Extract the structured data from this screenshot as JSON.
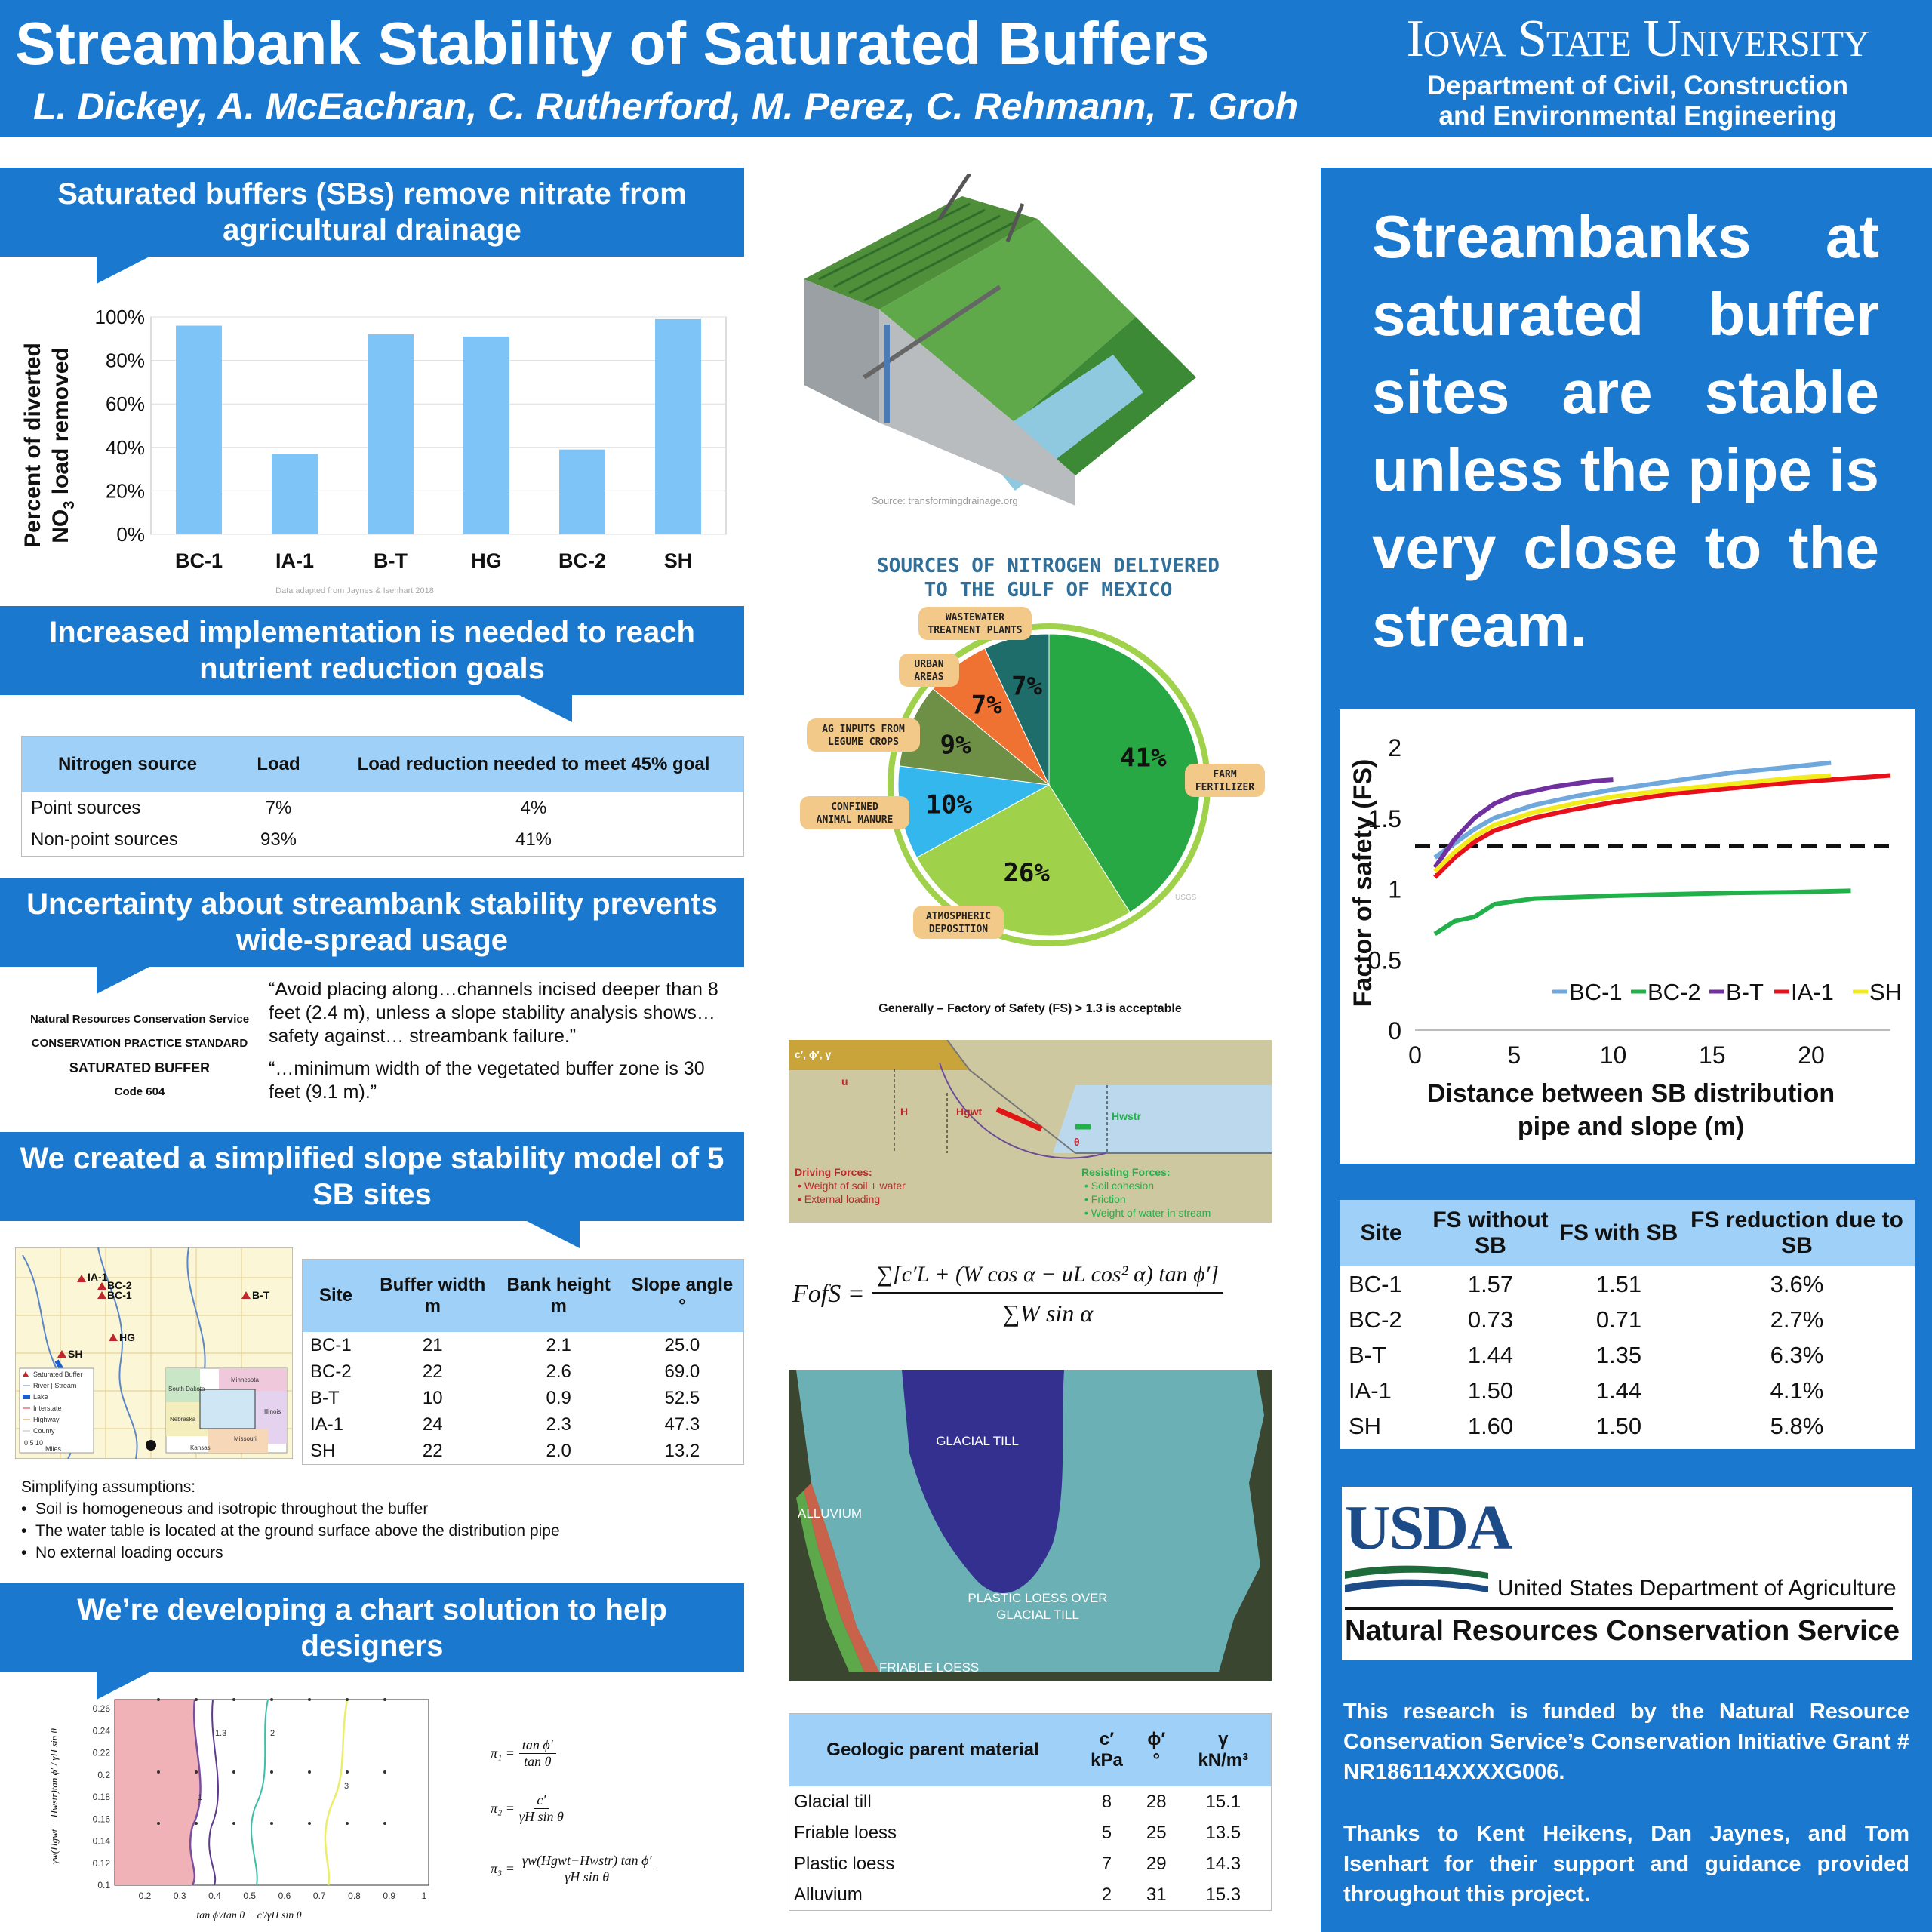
{
  "header": {
    "title": "Streambank Stability of Saturated Buffers",
    "authors": "L. Dickey, A. McEachran, C. Rutherford, M. Perez, C. Rehmann, T. Groh",
    "university": "Iowa State University",
    "dept_line1": "Department of Civil, Construction",
    "dept_line2": "and Environmental Engineering"
  },
  "sections": {
    "s1_title": "Saturated buffers (SBs) remove nitrate from agricultural drainage",
    "s2_title": "Increased implementation is needed to reach nutrient reduction goals",
    "s3_title": "Uncertainty about streambank stability prevents wide-spread usage",
    "s4_title": "We created a simplified slope stability model of 5 SB sites",
    "s5_title": "We’re developing a chart solution to help designers"
  },
  "nitrate_chart": {
    "ylabel_line1": "Percent of diverted",
    "ylabel_line2": "NO",
    "ylabel_sub": "3",
    "ylabel_line2b": " load removed",
    "yticks": [
      "100%",
      "80%",
      "60%",
      "40%",
      "20%",
      "0%"
    ],
    "caption": "Data adapted from Jaynes & Isenhart 2018",
    "color": "#7fc4f6"
  },
  "nitrogen_table": {
    "headers": [
      "Nitrogen source",
      "Load",
      "Load reduction needed to meet 45% goal"
    ],
    "rows": [
      [
        "Point sources",
        "7%",
        "4%"
      ],
      [
        "Non-point sources",
        "93%",
        "41%"
      ]
    ]
  },
  "nrcs": {
    "line1": "Natural Resources Conservation Service",
    "line2": "CONSERVATION PRACTICE STANDARD",
    "line3": "SATURATED BUFFER",
    "line4": "Code 604",
    "quote1": "“Avoid placing along…channels incised deeper than 8 feet (2.4 m), unless a slope stability analysis shows…safety against… streambank failure.”",
    "quote2": "“…minimum width of the vegetated buffer zone is 30 feet (9.1 m).”"
  },
  "site_map": {
    "labels": [
      "IA-1",
      "BC-2",
      "BC-1",
      "B-T",
      "HG",
      "SH"
    ],
    "legend": [
      "Saturated Buffer",
      "River | Stream",
      "Lake",
      "Interstate",
      "Highway",
      "County"
    ],
    "states": [
      "Minnesota",
      "South Dakota",
      "Nebraska",
      "Illinois",
      "Missouri",
      "Kansas"
    ],
    "scale": "0  5  10",
    "scale_unit": "Miles"
  },
  "site_table": {
    "headers": [
      "Site",
      "Buffer width",
      "Bank height",
      "Slope angle"
    ],
    "units": [
      "",
      "m",
      "m",
      "°"
    ],
    "rows": [
      [
        "BC-1",
        "21",
        "2.1",
        "25.0"
      ],
      [
        "BC-2",
        "22",
        "2.6",
        "69.0"
      ],
      [
        "B-T",
        "10",
        "0.9",
        "52.5"
      ],
      [
        "IA-1",
        "24",
        "2.3",
        "47.3"
      ],
      [
        "SH",
        "22",
        "2.0",
        "13.2"
      ]
    ]
  },
  "assumptions": {
    "title": "Simplifying assumptions:",
    "items": [
      "Soil is homogeneous and isotropic throughout the buffer",
      "The water table is located at the ground surface above the distribution pipe",
      "No external loading occurs"
    ]
  },
  "design_chart": {
    "yticks": [
      "0.26",
      "0.24",
      "0.22",
      "0.2",
      "0.18",
      "0.16",
      "0.14",
      "0.12",
      "0.1"
    ],
    "xticks": [
      "0.2",
      "0.3",
      "0.4",
      "0.5",
      "0.6",
      "0.7",
      "0.8",
      "0.9",
      "1"
    ],
    "contour_labels": [
      "1.3",
      "1",
      "2",
      "3"
    ],
    "pi1_label": "π₁ =",
    "pi1_num": "tan ϕ′",
    "pi1_den": "tan θ",
    "pi2_label": "π₂ =",
    "pi2_num": "c′",
    "pi2_den": "γH sin θ",
    "pi3_label": "π₃ =",
    "pi3_num": "γw(Hgwt−Hwstr) tan ϕ′",
    "pi3_den": "γH sin θ",
    "ylabel": "γw(Hgwt − Hwstr)tan ϕ′ / γH sin θ",
    "xlabel": "tan ϕ′/tan θ + c′/γH sin θ"
  },
  "buffer_image": {
    "source": "Source: transformingdrainage.org"
  },
  "pie_chart": {
    "title1": "SOURCES OF NITROGEN DELIVERED",
    "title2": "TO THE GULF OF MEXICO",
    "watermark": "USGS",
    "chart_data": {
      "type": "pie",
      "slices": [
        {
          "label": "FARM FERTILIZER",
          "value": 41,
          "color": "#27a844"
        },
        {
          "label": "ATMOSPHERIC DEPOSITION",
          "value": 26,
          "color": "#9fd14a"
        },
        {
          "label": "CONFINED ANIMAL MANURE",
          "value": 10,
          "color": "#33b7ec"
        },
        {
          "label": "AG INPUTS FROM LEGUME CROPS",
          "value": 9,
          "color": "#6e8f46"
        },
        {
          "label": "URBAN AREAS",
          "value": 7,
          "color": "#f07232"
        },
        {
          "label": "WASTEWATER TREATMENT PLANTS",
          "value": 7,
          "color": "#1e6d6a"
        }
      ]
    },
    "pct_labels": [
      "41%",
      "26%",
      "10%",
      "9%",
      "7%",
      "7%"
    ]
  },
  "slope_diagram": {
    "title": "Generally – Factory of Safety (FS) > 1.3 is acceptable",
    "soil_params": "c′, ϕ′, γ",
    "u": "u",
    "H": "H",
    "Hgwt": "Hgwt",
    "Hwstr": "Hwstr",
    "theta": "θ",
    "driving_title": "Driving Forces:",
    "driving_items": [
      "Weight of soil + water",
      "External loading"
    ],
    "resisting_title": "Resisting Forces:",
    "resisting_items": [
      "Soil cohesion",
      "Friction",
      "Weight of water in stream"
    ]
  },
  "equation": {
    "lhs": "FofS =",
    "numerator": "∑[c′L + (W cos α − uL cos² α) tan ϕ′]",
    "denominator": "∑W sin α"
  },
  "geology_map": {
    "labels": [
      "GLACIAL TILL",
      "ALLUVIUM",
      "PLASTIC LOESS OVER",
      "GLACIAL TILL",
      "FRIABLE LOESS"
    ]
  },
  "geology_table": {
    "headers": [
      "Geologic parent material",
      "c′",
      "ϕ′",
      "γ"
    ],
    "units": [
      "",
      "kPa",
      "°",
      "kN/m³"
    ],
    "rows": [
      [
        "Glacial till",
        "8",
        "28",
        "15.1"
      ],
      [
        "Friable loess",
        "5",
        "25",
        "13.5"
      ],
      [
        "Plastic loess",
        "7",
        "29",
        "14.3"
      ],
      [
        "Alluvium",
        "2",
        "31",
        "15.3"
      ]
    ]
  },
  "right": {
    "big_message": "Streambanks at saturated buffer sites are stable unless the pipe is very close to the stream."
  },
  "fs_chart": {
    "ylabel": "Factor of safety (FS)",
    "xlabel_line1": "Distance between SB distribution",
    "xlabel_line2": "pipe and slope (m)",
    "chart_data": {
      "type": "line",
      "xlim": [
        0,
        24
      ],
      "ylim": [
        0,
        2
      ],
      "xticks": [
        0,
        5,
        10,
        15,
        20
      ],
      "yticks": [
        0,
        0.5,
        1,
        1.5,
        2
      ],
      "ytick_labels": [
        "0",
        "0.5",
        "1",
        "1.5",
        "2"
      ],
      "threshold": 1.3,
      "legend_placement": "bottom-right",
      "series": [
        {
          "name": "BC-1",
          "color": "#6fa8dc",
          "x": [
            1,
            2,
            3,
            4,
            6,
            8,
            10,
            13,
            16,
            19,
            21
          ],
          "y": [
            1.22,
            1.32,
            1.42,
            1.5,
            1.59,
            1.65,
            1.7,
            1.76,
            1.82,
            1.86,
            1.89
          ]
        },
        {
          "name": "BC-2",
          "color": "#22b04b",
          "x": [
            1,
            2,
            3,
            4,
            6,
            8,
            10,
            13,
            16,
            19,
            22
          ],
          "y": [
            0.68,
            0.77,
            0.8,
            0.89,
            0.93,
            0.94,
            0.95,
            0.96,
            0.97,
            0.975,
            0.985
          ]
        },
        {
          "name": "B-T",
          "color": "#7030a0",
          "x": [
            1,
            2,
            3,
            4,
            5,
            6,
            7,
            8,
            9,
            10
          ],
          "y": [
            1.15,
            1.35,
            1.5,
            1.6,
            1.66,
            1.69,
            1.72,
            1.74,
            1.76,
            1.77
          ]
        },
        {
          "name": "IA-1",
          "color": "#e8101a",
          "x": [
            1,
            2,
            3,
            4,
            6,
            8,
            10,
            13,
            16,
            19,
            22,
            24
          ],
          "y": [
            1.08,
            1.22,
            1.33,
            1.41,
            1.5,
            1.56,
            1.61,
            1.67,
            1.71,
            1.75,
            1.78,
            1.8
          ]
        },
        {
          "name": "SH",
          "color": "#f2ec1c",
          "x": [
            1,
            2,
            3,
            4,
            6,
            8,
            10,
            13,
            16,
            19,
            21
          ],
          "y": [
            1.12,
            1.26,
            1.37,
            1.45,
            1.54,
            1.6,
            1.65,
            1.7,
            1.74,
            1.78,
            1.8
          ]
        }
      ]
    }
  },
  "fs_table": {
    "headers": [
      "Site",
      "FS without SB",
      "FS with SB",
      "FS reduction due to SB"
    ],
    "rows": [
      [
        "BC-1",
        "1.57",
        "1.51",
        "3.6%"
      ],
      [
        "BC-2",
        "0.73",
        "0.71",
        "2.7%"
      ],
      [
        "B-T",
        "1.44",
        "1.35",
        "6.3%"
      ],
      [
        "IA-1",
        "1.50",
        "1.44",
        "4.1%"
      ],
      [
        "SH",
        "1.60",
        "1.50",
        "5.8%"
      ]
    ]
  },
  "usda": {
    "logo": "USDA",
    "dept": "United States Department of Agriculture",
    "service": "Natural Resources Conservation Service"
  },
  "funding": "This research is funded by the Natural Resource Conservation Service’s Conservation Initiative Grant # NR186114XXXXG006.",
  "thanks": "Thanks to Kent Heikens, Dan Jaynes, and Tom Isenhart for their support and guidance provided throughout this project.",
  "chart_data": {
    "type": "bar",
    "categories": [
      "BC-1",
      "IA-1",
      "B-T",
      "HG",
      "BC-2",
      "SH"
    ],
    "values": [
      96,
      37,
      92,
      91,
      39,
      99
    ],
    "ylim": [
      0,
      100
    ],
    "ylabel": "Percent of diverted NO3 load removed",
    "color": "#7fc4f6"
  }
}
